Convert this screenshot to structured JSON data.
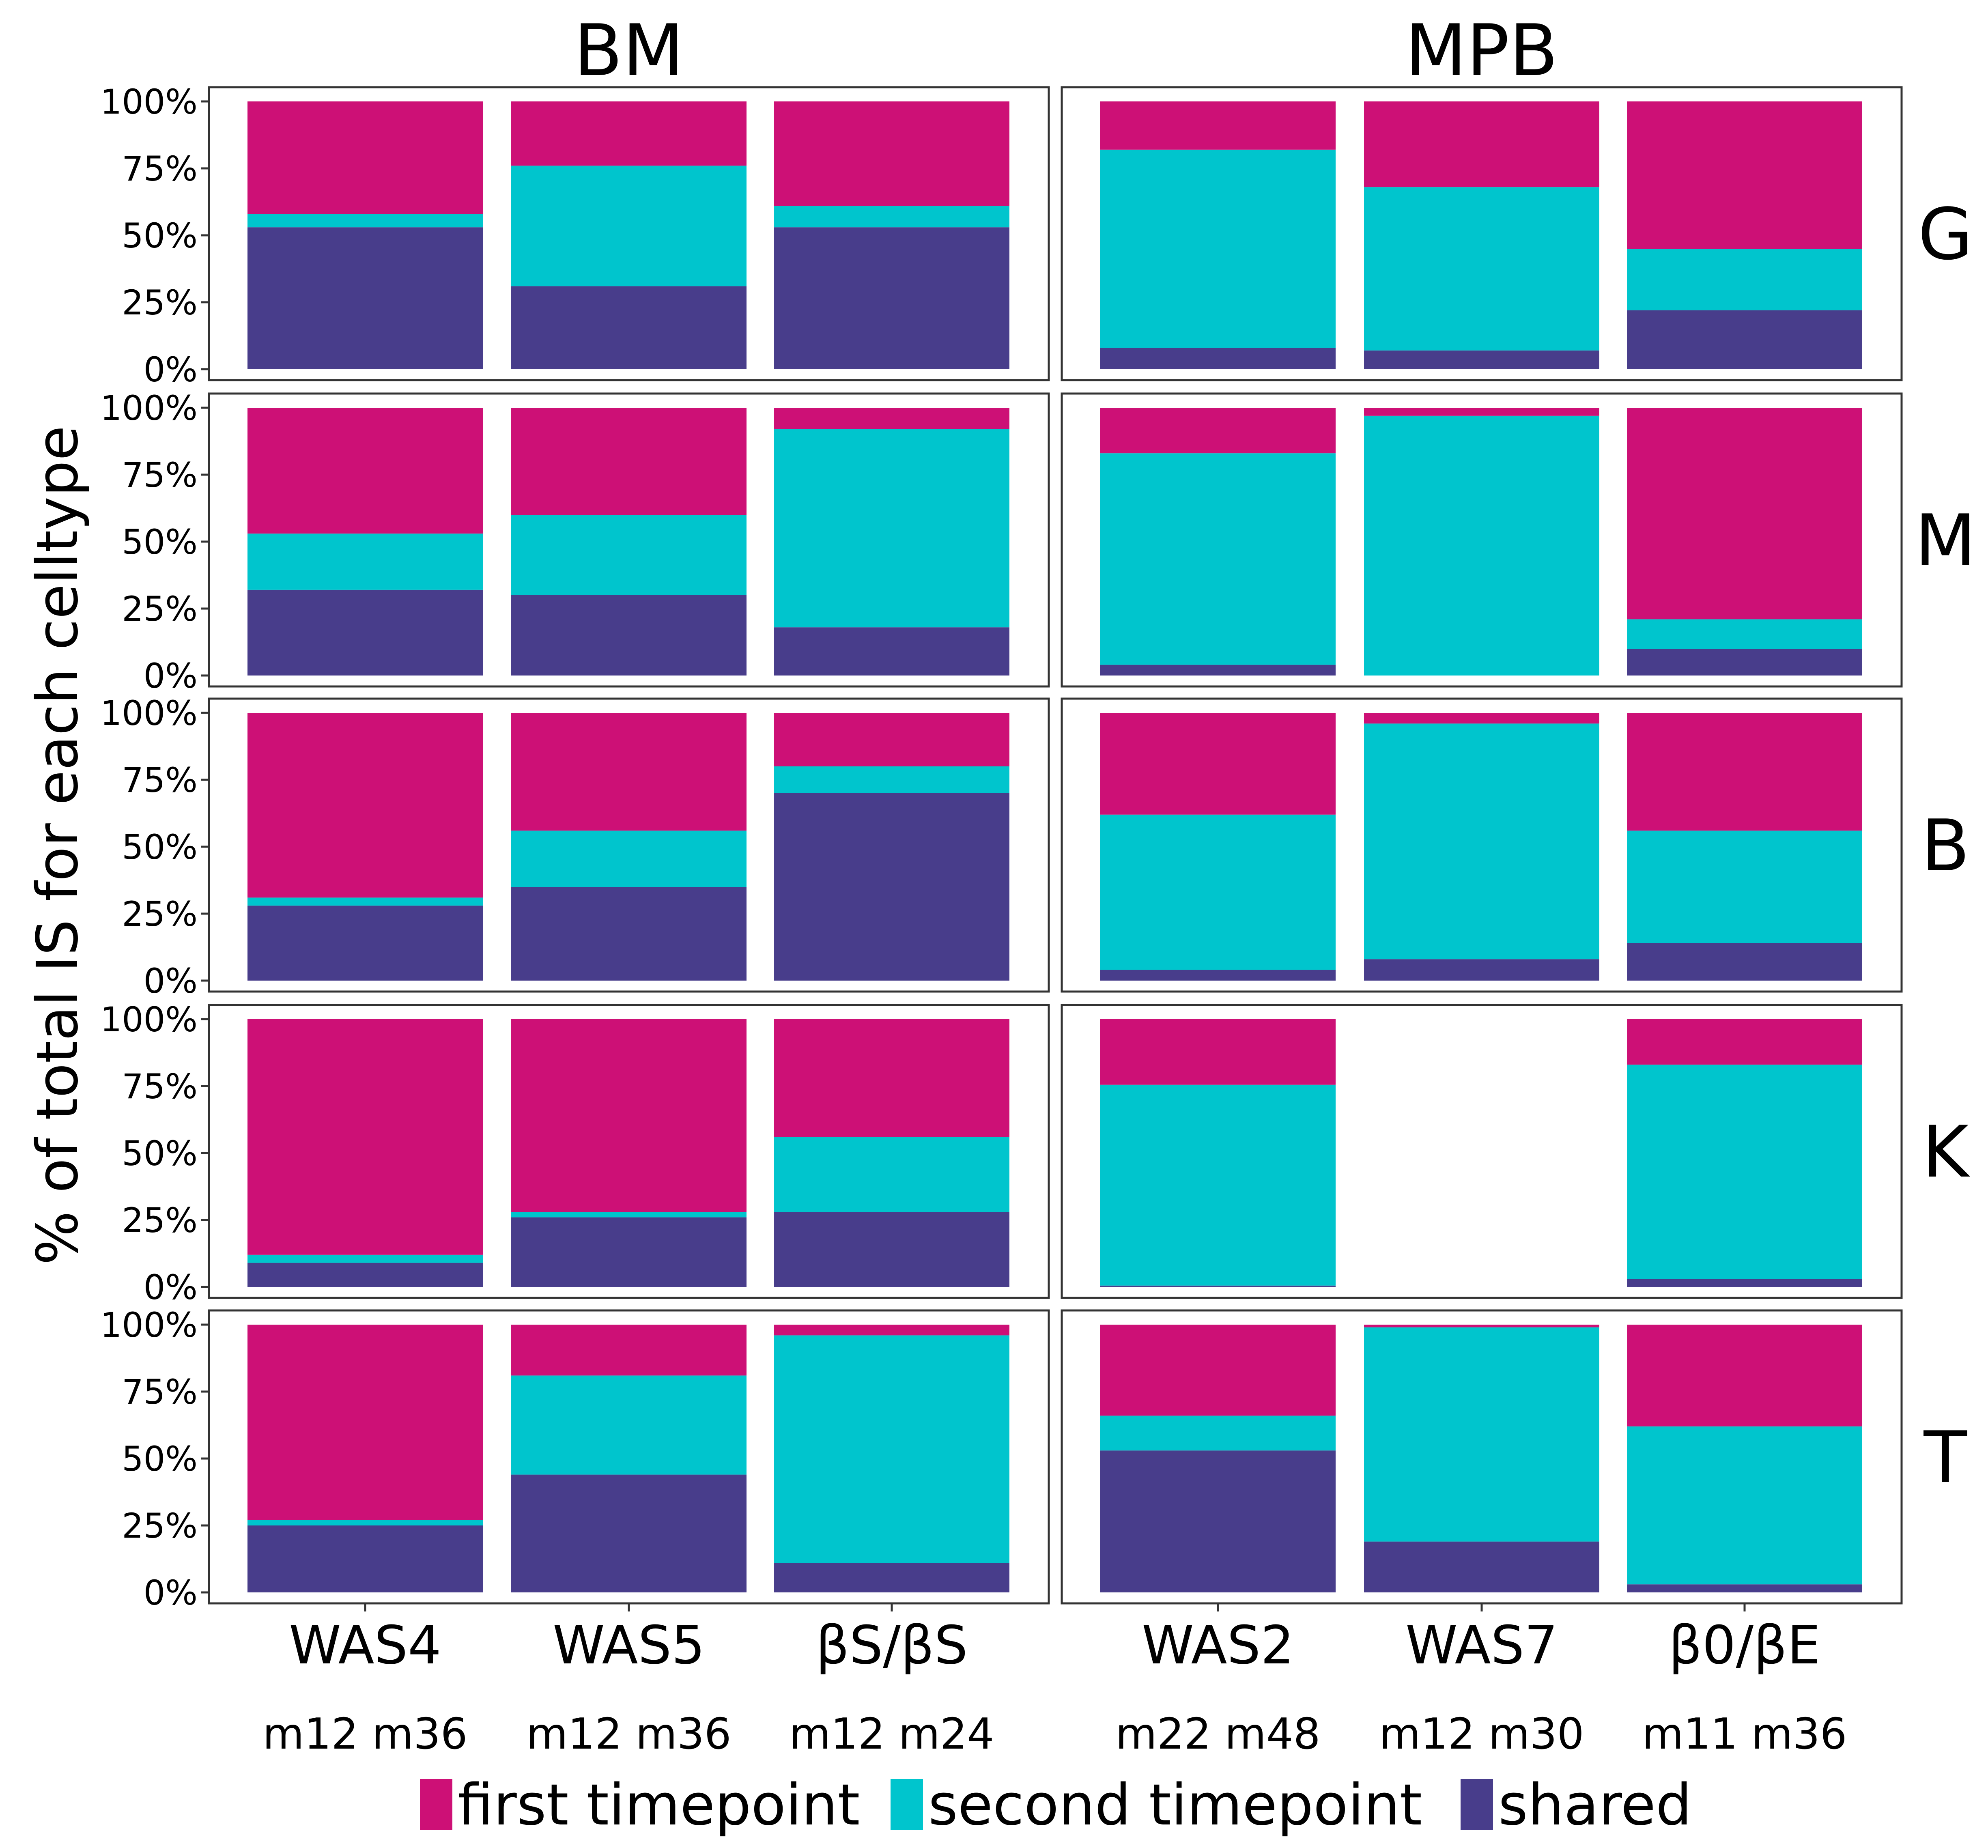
{
  "chart_data": {
    "type": "bar",
    "stacked": true,
    "facet_columns": [
      "BM",
      "MPB"
    ],
    "facet_rows": [
      "G",
      "M",
      "B",
      "K",
      "T"
    ],
    "ylabel": "% of total IS for each celltype",
    "yticks": [
      "0%",
      "25%",
      "50%",
      "75%",
      "100%"
    ],
    "ylim": [
      0,
      100
    ],
    "grid": false,
    "legend_position": "bottom",
    "categories": {
      "BM": [
        {
          "label": "WAS4",
          "timepoints": "m12 m36"
        },
        {
          "label": "WAS5",
          "timepoints": "m12 m36"
        },
        {
          "label": "βS/βS",
          "timepoints": "m12 m24"
        }
      ],
      "MPB": [
        {
          "label": "WAS2",
          "timepoints": "m22 m48"
        },
        {
          "label": "WAS7",
          "timepoints": "m12 m30"
        },
        {
          "label": "β0/βE",
          "timepoints": "m11 m36"
        }
      ]
    },
    "series": [
      {
        "name": "shared",
        "color": "#483D8B"
      },
      {
        "name": "second timepoint",
        "color": "#00C5CD"
      },
      {
        "name": "first timepoint",
        "color": "#CD1076"
      }
    ],
    "legend_order": [
      "first timepoint",
      "second timepoint",
      "shared"
    ],
    "data": {
      "G": {
        "BM": [
          {
            "shared": 53,
            "second timepoint": 5,
            "first timepoint": 42
          },
          {
            "shared": 31,
            "second timepoint": 45,
            "first timepoint": 24
          },
          {
            "shared": 53,
            "second timepoint": 8,
            "first timepoint": 39
          }
        ],
        "MPB": [
          {
            "shared": 8,
            "second timepoint": 74,
            "first timepoint": 18
          },
          {
            "shared": 7,
            "second timepoint": 61,
            "first timepoint": 32
          },
          {
            "shared": 22,
            "second timepoint": 23,
            "first timepoint": 55
          }
        ]
      },
      "M": {
        "BM": [
          {
            "shared": 32,
            "second timepoint": 21,
            "first timepoint": 47
          },
          {
            "shared": 30,
            "second timepoint": 30,
            "first timepoint": 40
          },
          {
            "shared": 18,
            "second timepoint": 74,
            "first timepoint": 8
          }
        ],
        "MPB": [
          {
            "shared": 4,
            "second timepoint": 79,
            "first timepoint": 17
          },
          {
            "shared": 0,
            "second timepoint": 97,
            "first timepoint": 3
          },
          {
            "shared": 10,
            "second timepoint": 11,
            "first timepoint": 79
          }
        ]
      },
      "B": {
        "BM": [
          {
            "shared": 28,
            "second timepoint": 3,
            "first timepoint": 69
          },
          {
            "shared": 35,
            "second timepoint": 21,
            "first timepoint": 44
          },
          {
            "shared": 70,
            "second timepoint": 10,
            "first timepoint": 20
          }
        ],
        "MPB": [
          {
            "shared": 4,
            "second timepoint": 58,
            "first timepoint": 38
          },
          {
            "shared": 8,
            "second timepoint": 88,
            "first timepoint": 4
          },
          {
            "shared": 14,
            "second timepoint": 42,
            "first timepoint": 44
          }
        ]
      },
      "K": {
        "BM": [
          {
            "shared": 9,
            "second timepoint": 3,
            "first timepoint": 88
          },
          {
            "shared": 26,
            "second timepoint": 2,
            "first timepoint": 72
          },
          {
            "shared": 28,
            "second timepoint": 28,
            "first timepoint": 44
          }
        ],
        "MPB": [
          {
            "shared": 0.5,
            "second timepoint": 75,
            "first timepoint": 24.5
          },
          null,
          {
            "shared": 3,
            "second timepoint": 80,
            "first timepoint": 17
          }
        ]
      },
      "T": {
        "BM": [
          {
            "shared": 25,
            "second timepoint": 2,
            "first timepoint": 73
          },
          {
            "shared": 44,
            "second timepoint": 37,
            "first timepoint": 19
          },
          {
            "shared": 11,
            "second timepoint": 85,
            "first timepoint": 4
          }
        ],
        "MPB": [
          {
            "shared": 53,
            "second timepoint": 13,
            "first timepoint": 34
          },
          {
            "shared": 19,
            "second timepoint": 80,
            "first timepoint": 1
          },
          {
            "shared": 3,
            "second timepoint": 59,
            "first timepoint": 38
          }
        ]
      }
    }
  }
}
